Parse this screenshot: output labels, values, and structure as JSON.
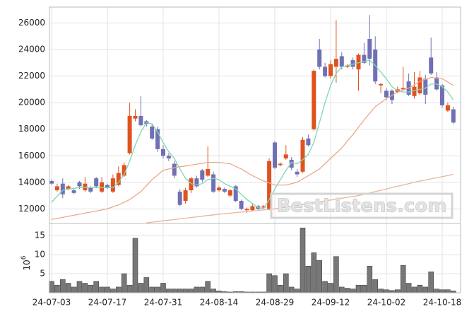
{
  "chart_data": {
    "type": "candlestick",
    "categories": [
      "24-07-03",
      null,
      null,
      null,
      null,
      null,
      null,
      null,
      null,
      null,
      "24-07-17",
      null,
      null,
      null,
      null,
      null,
      null,
      null,
      null,
      null,
      "24-07-31",
      null,
      null,
      null,
      null,
      null,
      null,
      null,
      null,
      null,
      "24-08-14",
      null,
      null,
      null,
      null,
      null,
      null,
      null,
      null,
      null,
      "24-08-29",
      null,
      null,
      null,
      null,
      null,
      null,
      null,
      null,
      null,
      "24-09-12",
      null,
      null,
      null,
      null,
      null,
      null,
      null,
      null,
      null,
      "24-10-02",
      null,
      null,
      null,
      null,
      null,
      null,
      null,
      null,
      null,
      "24-10-18",
      null,
      null
    ],
    "open": [
      14100,
      13400,
      13900,
      13500,
      13400,
      14000,
      13400,
      13600,
      14300,
      13300,
      13800,
      13300,
      13800,
      14500,
      16200,
      18800,
      19000,
      18600,
      18200,
      18000,
      16500,
      16000,
      15400,
      13300,
      12600,
      13400,
      14300,
      14900,
      14500,
      14600,
      13400,
      13500,
      13000,
      13700,
      12600,
      11900,
      11900,
      12200,
      12100,
      12000,
      17000,
      15300,
      15800,
      15700,
      14800,
      14800,
      17300,
      18000,
      24000,
      22700,
      22000,
      22700,
      23500,
      22700,
      23200,
      22500,
      23600,
      24800,
      24000,
      21300,
      20900,
      20900,
      20800,
      21000,
      21600,
      20500,
      20700,
      21800,
      23400,
      21900,
      21300,
      19400,
      19500
    ],
    "high": [
      14200,
      13900,
      14300,
      13800,
      13500,
      14100,
      14400,
      13700,
      14400,
      14400,
      13900,
      14600,
      15200,
      15500,
      20000,
      19500,
      20500,
      18700,
      18400,
      18200,
      16800,
      16200,
      15600,
      13500,
      13600,
      14400,
      14500,
      15000,
      16700,
      14800,
      13700,
      13600,
      13500,
      13800,
      12700,
      12100,
      12400,
      12300,
      12300,
      15800,
      17100,
      15500,
      16800,
      15900,
      15000,
      17400,
      17600,
      22500,
      24800,
      23000,
      23200,
      26200,
      23800,
      22900,
      23400,
      23700,
      24500,
      26600,
      25000,
      21500,
      21100,
      21000,
      21200,
      22700,
      22200,
      22300,
      22400,
      22100,
      24900,
      22300,
      21400,
      20000,
      19700
    ],
    "low": [
      13800,
      13300,
      12800,
      13400,
      13100,
      13500,
      13300,
      13200,
      13600,
      13200,
      13500,
      13200,
      13700,
      14400,
      16100,
      18600,
      18200,
      18200,
      17200,
      16300,
      15800,
      15600,
      14300,
      12200,
      12400,
      13200,
      13600,
      14000,
      14400,
      13200,
      13300,
      13200,
      12900,
      12500,
      11900,
      11700,
      11800,
      11900,
      12000,
      11900,
      15000,
      15200,
      15700,
      14900,
      14400,
      14700,
      16700,
      17900,
      22500,
      21900,
      21800,
      21500,
      22500,
      22600,
      22500,
      20900,
      22900,
      22800,
      21400,
      20700,
      20200,
      19900,
      20700,
      20900,
      20500,
      20300,
      20600,
      19900,
      22100,
      20900,
      19600,
      19300,
      18400
    ],
    "close": [
      13900,
      13700,
      13100,
      13700,
      13200,
      13700,
      13900,
      13300,
      13700,
      14000,
      13600,
      14300,
      14700,
      15300,
      19000,
      19000,
      18300,
      18400,
      17300,
      16500,
      16000,
      15800,
      14500,
      12300,
      13400,
      14300,
      13700,
      14200,
      15000,
      13300,
      13600,
      13300,
      13400,
      12600,
      12000,
      12000,
      12200,
      12000,
      12200,
      15600,
      15100,
      15400,
      16100,
      15100,
      14600,
      17200,
      16800,
      22400,
      22700,
      22000,
      22900,
      23300,
      22700,
      22800,
      22700,
      23600,
      23000,
      23300,
      21600,
      21400,
      20400,
      20200,
      21000,
      21100,
      20600,
      21200,
      21900,
      20600,
      22200,
      21000,
      19800,
      19800,
      18500
    ],
    "up_color": "#e0521e",
    "down_color": "#7070b4",
    "lines": [
      {
        "color": "#7fd6b4",
        "values": [
          12500,
          12950,
          13400,
          13500,
          13550,
          13600,
          13600,
          13600,
          13600,
          13600,
          13600,
          13600,
          14000,
          14600,
          15600,
          16800,
          17800,
          18500,
          18400,
          17800,
          17000,
          16300,
          15800,
          15000,
          14300,
          13900,
          13800,
          13900,
          14200,
          14300,
          14200,
          13900,
          13700,
          13500,
          13100,
          12700,
          12400,
          12100,
          12000,
          12700,
          13500,
          14200,
          14900,
          15500,
          15400,
          15700,
          16100,
          17000,
          18500,
          20000,
          21300,
          22200,
          22700,
          22800,
          22900,
          23000,
          23100,
          23200,
          22800,
          22300,
          21800,
          21200,
          20900,
          20800,
          20800,
          20900,
          21000,
          21100,
          21400,
          21400,
          21200,
          20800,
          20200
        ]
      },
      {
        "color": "#eba98a",
        "values": [
          11200,
          11280,
          11360,
          11440,
          11520,
          11600,
          11680,
          11760,
          11840,
          11920,
          12000,
          12150,
          12300,
          12500,
          12700,
          13000,
          13300,
          13750,
          14200,
          14550,
          14900,
          15000,
          15100,
          15170,
          15230,
          15300,
          15370,
          15430,
          15500,
          15500,
          15500,
          15450,
          15400,
          15200,
          15000,
          14750,
          14500,
          14300,
          14100,
          13950,
          13800,
          13800,
          13800,
          13900,
          14000,
          14250,
          14500,
          14750,
          15000,
          15400,
          15800,
          16200,
          16600,
          17100,
          17600,
          18150,
          18700,
          19200,
          19700,
          20000,
          20300,
          20550,
          20800,
          20950,
          21100,
          21350,
          21600,
          21750,
          21900,
          21850,
          21800,
          21550,
          21300
        ]
      },
      {
        "color": "#e9b597",
        "values": [
          null,
          null,
          null,
          null,
          null,
          null,
          null,
          null,
          null,
          null,
          null,
          null,
          null,
          null,
          null,
          null,
          null,
          10950,
          11000,
          11050,
          11100,
          11150,
          11200,
          11250,
          11300,
          11350,
          11400,
          11450,
          11500,
          11550,
          11600,
          11640,
          11680,
          11720,
          11760,
          11800,
          11840,
          11880,
          11920,
          11960,
          12000,
          12070,
          12130,
          12200,
          12270,
          12330,
          12400,
          12470,
          12530,
          12600,
          12670,
          12730,
          12800,
          12870,
          12930,
          13000,
          13100,
          13200,
          13300,
          13400,
          13500,
          13600,
          13700,
          13800,
          13900,
          14000,
          14090,
          14170,
          14260,
          14340,
          14430,
          14510,
          14600
        ]
      }
    ],
    "ylim": [
      10900,
      27200
    ],
    "yticks": [
      12000,
      14000,
      16000,
      18000,
      20000,
      22000,
      24000,
      26000
    ],
    "grid": true,
    "volume": {
      "color": "#777777",
      "ylim": [
        0,
        17.8
      ],
      "yticks": [
        5,
        10,
        15
      ],
      "label": "10",
      "label_exponent": "6",
      "values": [
        3,
        2,
        3.5,
        2.5,
        1.5,
        3,
        2.5,
        2,
        3,
        1.5,
        1.5,
        1,
        1.5,
        5,
        2,
        14.3,
        2.5,
        4,
        1.5,
        1.5,
        2.5,
        1,
        1,
        1,
        1,
        1,
        1.5,
        1.5,
        3,
        1,
        0.5,
        0.3,
        0.2,
        0.3,
        0.3,
        0.2,
        0.2,
        0.2,
        0.2,
        5,
        4.5,
        2,
        5,
        1.5,
        1,
        17,
        7,
        10.5,
        8.5,
        3,
        2.5,
        9.5,
        1.5,
        1.2,
        1,
        2,
        2,
        7,
        3.5,
        1,
        0.8,
        0.6,
        0.8,
        7.2,
        2.5,
        1.5,
        2,
        1.5,
        5.5,
        1,
        0.8,
        0.8,
        0.5
      ]
    },
    "watermark": "BestListens.com"
  }
}
